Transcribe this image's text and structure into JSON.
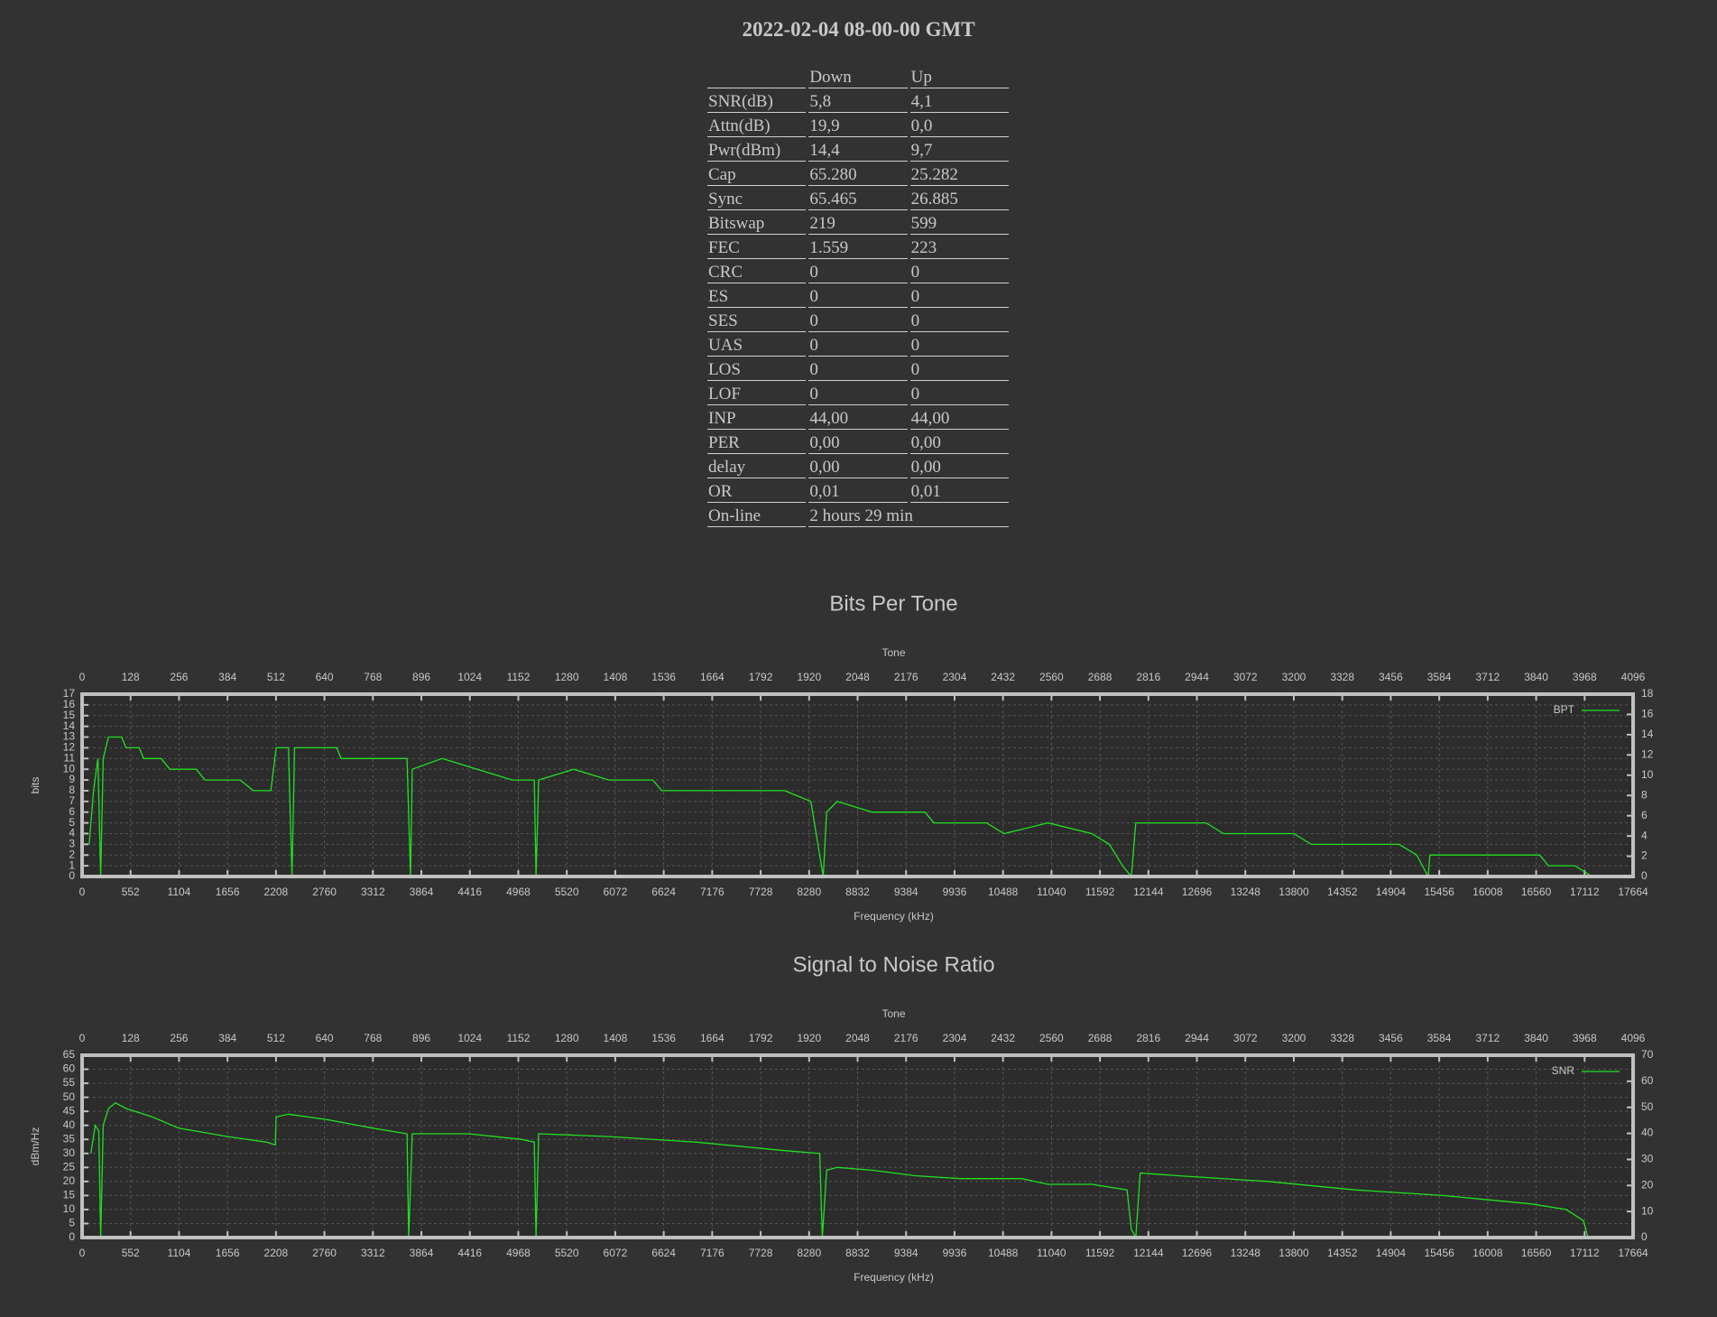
{
  "header": {
    "title": "2022-02-04 08-00-00 GMT"
  },
  "table": {
    "columns": [
      "Down",
      "Up"
    ],
    "rows": [
      [
        "SNR(dB)",
        "5,8",
        "4,1"
      ],
      [
        "Attn(dB)",
        "19,9",
        "0,0"
      ],
      [
        "Pwr(dBm)",
        "14,4",
        "9,7"
      ],
      [
        "Cap",
        "65.280",
        "25.282"
      ],
      [
        "Sync",
        "65.465",
        "26.885"
      ],
      [
        "Bitswap",
        "219",
        "599"
      ],
      [
        "FEC",
        "1.559",
        "223"
      ],
      [
        "CRC",
        "0",
        "0"
      ],
      [
        "ES",
        "0",
        "0"
      ],
      [
        "SES",
        "0",
        "0"
      ],
      [
        "UAS",
        "0",
        "0"
      ],
      [
        "LOS",
        "0",
        "0"
      ],
      [
        "LOF",
        "0",
        "0"
      ],
      [
        "INP",
        "44,00",
        "44,00"
      ],
      [
        "PER",
        "0,00",
        "0,00"
      ],
      [
        "delay",
        "0,00",
        "0,00"
      ],
      [
        "OR",
        "0,01",
        "0,01"
      ],
      [
        "On-line",
        "2 hours 29 min"
      ]
    ]
  },
  "chart_data": [
    {
      "type": "line",
      "title": "Bits Per Tone",
      "x2label": "Tone",
      "xlabel": "Frequency (kHz)",
      "ylabel": "bits",
      "xlim": [
        0,
        17664
      ],
      "xticks": [
        0,
        552,
        1104,
        1656,
        2208,
        2760,
        3312,
        3864,
        4416,
        4968,
        5520,
        6072,
        6624,
        7176,
        7728,
        8280,
        8832,
        9384,
        9936,
        10488,
        11040,
        11592,
        12144,
        12696,
        13248,
        13800,
        14352,
        14904,
        15456,
        16008,
        16560,
        17112,
        17664
      ],
      "x2lim": [
        0,
        4096
      ],
      "x2ticks": [
        0,
        128,
        256,
        384,
        512,
        640,
        768,
        896,
        1024,
        1152,
        1280,
        1408,
        1536,
        1664,
        1792,
        1920,
        2048,
        2176,
        2304,
        2432,
        2560,
        2688,
        2816,
        2944,
        3072,
        3200,
        3328,
        3456,
        3584,
        3712,
        3840,
        3968,
        4096
      ],
      "ylim": [
        0,
        17
      ],
      "yticks": [
        0,
        1,
        2,
        3,
        4,
        5,
        6,
        7,
        8,
        9,
        10,
        11,
        12,
        13,
        14,
        15,
        16,
        17
      ],
      "y2lim": [
        0,
        18
      ],
      "y2ticks": [
        0,
        2,
        4,
        6,
        8,
        10,
        12,
        14,
        16,
        18
      ],
      "grid": true,
      "legend": "top-right",
      "x": [
        80,
        130,
        180,
        212,
        240,
        300,
        450,
        500,
        650,
        700,
        900,
        1000,
        1300,
        1400,
        1800,
        1950,
        2150,
        2210,
        2350,
        2390,
        2420,
        2900,
        2950,
        3700,
        3740,
        3760,
        4100,
        4500,
        4900,
        5150,
        5170,
        5200,
        5600,
        6000,
        6500,
        6600,
        7300,
        8000,
        8300,
        8440,
        8480,
        8600,
        9000,
        9600,
        9700,
        10300,
        10500,
        11000,
        11500,
        11700,
        11850,
        11950,
        12000,
        12800,
        13000,
        13800,
        14000,
        15000,
        15200,
        15330,
        15350,
        16600,
        16700,
        17000,
        17200
      ],
      "series": [
        {
          "name": "BPT",
          "color": "#22e022",
          "axis": "y",
          "values": [
            3,
            8,
            11,
            0,
            11,
            13,
            13,
            12,
            12,
            11,
            11,
            10,
            10,
            9,
            9,
            8,
            8,
            12,
            12,
            0,
            12,
            12,
            11,
            11,
            0,
            10,
            11,
            10,
            9,
            9,
            0,
            9,
            10,
            9,
            9,
            8,
            8,
            8,
            7,
            0,
            6,
            7,
            6,
            6,
            5,
            5,
            4,
            5,
            4,
            3,
            1,
            0,
            5,
            5,
            4,
            4,
            3,
            3,
            2,
            0,
            2,
            2,
            1,
            1,
            0
          ]
        }
      ]
    },
    {
      "type": "line",
      "title": "Signal to Noise Ratio",
      "x2label": "Tone",
      "xlabel": "Frequency (kHz)",
      "ylabel": "dBm/Hz",
      "xlim": [
        0,
        17664
      ],
      "xticks": [
        0,
        552,
        1104,
        1656,
        2208,
        2760,
        3312,
        3864,
        4416,
        4968,
        5520,
        6072,
        6624,
        7176,
        7728,
        8280,
        8832,
        9384,
        9936,
        10488,
        11040,
        11592,
        12144,
        12696,
        13248,
        13800,
        14352,
        14904,
        15456,
        16008,
        16560,
        17112,
        17664
      ],
      "x2lim": [
        0,
        4096
      ],
      "x2ticks": [
        0,
        128,
        256,
        384,
        512,
        640,
        768,
        896,
        1024,
        1152,
        1280,
        1408,
        1536,
        1664,
        1792,
        1920,
        2048,
        2176,
        2304,
        2432,
        2560,
        2688,
        2816,
        2944,
        3072,
        3200,
        3328,
        3456,
        3584,
        3712,
        3840,
        3968,
        4096
      ],
      "ylim": [
        0,
        65
      ],
      "yticks": [
        0,
        5,
        10,
        15,
        20,
        25,
        30,
        35,
        40,
        45,
        50,
        55,
        60,
        65
      ],
      "y2lim": [
        0,
        70
      ],
      "y2ticks": [
        0,
        10,
        20,
        30,
        40,
        50,
        60,
        70
      ],
      "grid": true,
      "legend": "top-right",
      "x": [
        100,
        150,
        190,
        212,
        240,
        300,
        380,
        500,
        800,
        1100,
        1656,
        2100,
        2200,
        2210,
        2350,
        2800,
        3312,
        3700,
        3720,
        3760,
        4400,
        5000,
        5150,
        5170,
        5200,
        6000,
        7000,
        8000,
        8400,
        8430,
        8480,
        8600,
        9000,
        9500,
        10000,
        10700,
        11000,
        11500,
        11900,
        11950,
        12000,
        12050,
        12500,
        13500,
        14500,
        15500,
        16500,
        16900,
        17000,
        17100,
        17150
      ],
      "series": [
        {
          "name": "SNR",
          "color": "#22e022",
          "axis": "y",
          "values": [
            30,
            40,
            38,
            0,
            40,
            46,
            48,
            46,
            43,
            39,
            36,
            34,
            33,
            43,
            44,
            42,
            39,
            37,
            0,
            37,
            37,
            35,
            34,
            0,
            37,
            36,
            34,
            31,
            30,
            0,
            24,
            25,
            24,
            22,
            21,
            21,
            19,
            19,
            17,
            3,
            0,
            23,
            22,
            20,
            17,
            15,
            12,
            10,
            8,
            6,
            0
          ]
        }
      ]
    }
  ]
}
